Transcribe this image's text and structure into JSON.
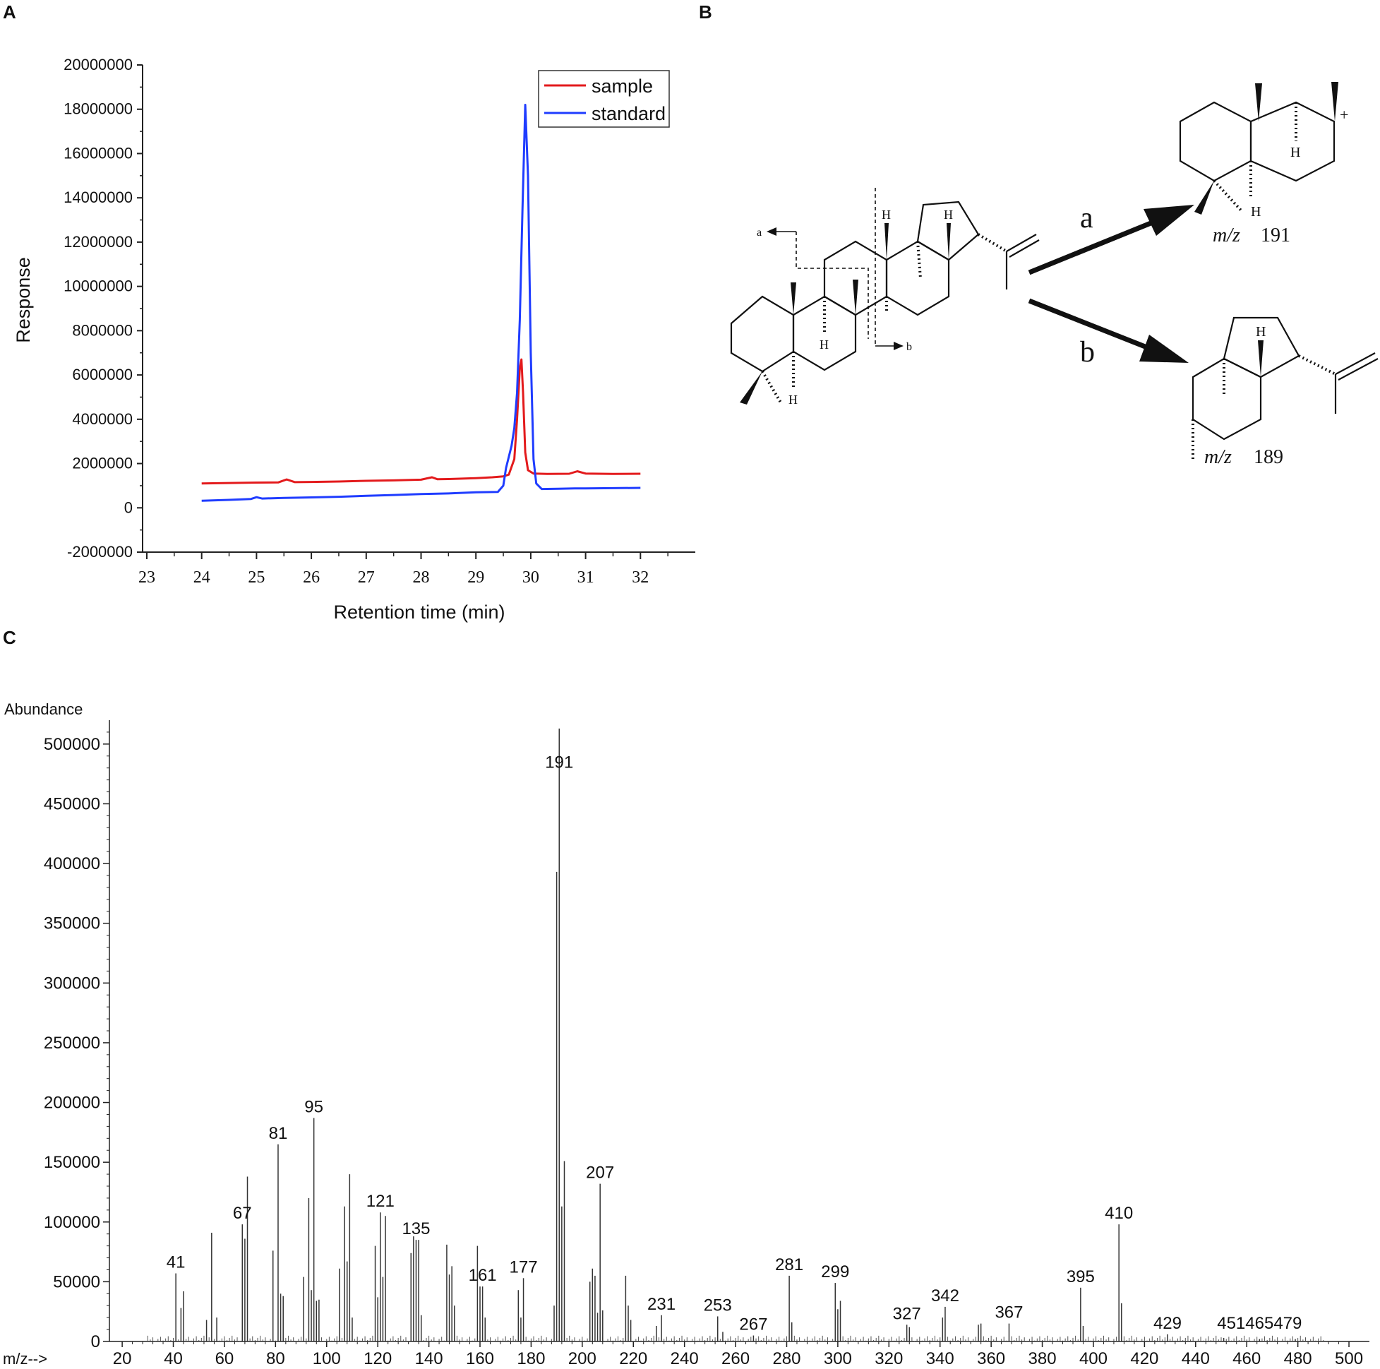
{
  "panels": {
    "a": "A",
    "b": "B",
    "c": "C"
  },
  "chart_data": [
    {
      "type": "line",
      "panel": "A",
      "xlabel": "Retention time (min)",
      "ylabel": "Response",
      "xlim": [
        23,
        33
      ],
      "ylim": [
        -2000000,
        20000000
      ],
      "xticks": [
        "23",
        "24",
        "25",
        "26",
        "27",
        "28",
        "29",
        "30",
        "31",
        "32"
      ],
      "yticks": [
        "-2000000",
        "0",
        "2000000",
        "4000000",
        "6000000",
        "8000000",
        "10000000",
        "12000000",
        "14000000",
        "16000000",
        "18000000",
        "20000000"
      ],
      "legend": "top-right",
      "series": [
        {
          "name": "sample",
          "color": "#e31a1c",
          "x": [
            24,
            24.5,
            25,
            25.4,
            25.55,
            25.7,
            26,
            26.5,
            27,
            27.5,
            28,
            28.2,
            28.3,
            28.5,
            29,
            29.3,
            29.5,
            29.6,
            29.7,
            29.75,
            29.8,
            29.83,
            29.86,
            29.9,
            29.95,
            30.05,
            30.3,
            30.7,
            30.85,
            31,
            31.5,
            32
          ],
          "y": [
            1100000,
            1120000,
            1140000,
            1150000,
            1280000,
            1160000,
            1170000,
            1190000,
            1220000,
            1240000,
            1270000,
            1380000,
            1290000,
            1300000,
            1340000,
            1380000,
            1420000,
            1500000,
            2200000,
            4000000,
            6300000,
            6700000,
            5200000,
            2500000,
            1700000,
            1550000,
            1530000,
            1540000,
            1650000,
            1550000,
            1530000,
            1540000
          ]
        },
        {
          "name": "standard",
          "color": "#1f3cff",
          "x": [
            24,
            24.5,
            24.9,
            25,
            25.1,
            25.5,
            26,
            26.5,
            27,
            27.5,
            28,
            28.5,
            29,
            29.4,
            29.5,
            29.55,
            29.6,
            29.65,
            29.7,
            29.75,
            29.8,
            29.85,
            29.9,
            29.95,
            30,
            30.05,
            30.1,
            30.2,
            30.5,
            30.8,
            31,
            31.5,
            32
          ],
          "y": [
            320000,
            360000,
            400000,
            480000,
            420000,
            450000,
            470000,
            500000,
            540000,
            580000,
            620000,
            650000,
            700000,
            720000,
            1000000,
            1800000,
            2300000,
            2800000,
            3600000,
            5200000,
            8500000,
            13500000,
            18200000,
            15000000,
            7000000,
            2200000,
            1100000,
            850000,
            860000,
            880000,
            880000,
            890000,
            900000
          ]
        }
      ]
    },
    {
      "type": "bar",
      "panel": "C",
      "ylabel": "Abundance",
      "xlabel": "m/z-->",
      "xlim": [
        15,
        508
      ],
      "ylim": [
        0,
        520000
      ],
      "xticks": [
        "20",
        "40",
        "60",
        "80",
        "100",
        "120",
        "140",
        "160",
        "180",
        "200",
        "220",
        "240",
        "260",
        "280",
        "300",
        "320",
        "340",
        "360",
        "380",
        "400",
        "420",
        "440",
        "460",
        "480",
        "500"
      ],
      "yticks": [
        "0",
        "50000",
        "100000",
        "150000",
        "200000",
        "250000",
        "300000",
        "350000",
        "400000",
        "450000",
        "500000"
      ],
      "x": [
        41,
        43,
        44,
        53,
        55,
        57,
        67,
        68,
        69,
        79,
        81,
        82,
        83,
        91,
        93,
        94,
        95,
        96,
        97,
        105,
        107,
        108,
        109,
        110,
        119,
        120,
        121,
        122,
        123,
        133,
        134,
        135,
        136,
        137,
        147,
        148,
        149,
        150,
        159,
        160,
        161,
        162,
        175,
        176,
        177,
        189,
        190,
        191,
        192,
        193,
        203,
        204,
        205,
        206,
        207,
        208,
        217,
        218,
        219,
        229,
        231,
        253,
        255,
        267,
        281,
        282,
        299,
        300,
        301,
        327,
        328,
        341,
        342,
        355,
        356,
        367,
        395,
        396,
        410,
        411,
        429,
        451,
        465,
        479
      ],
      "y": [
        57000,
        28000,
        42000,
        18000,
        91000,
        20000,
        98000,
        86000,
        138000,
        76000,
        165000,
        40000,
        38000,
        54000,
        120000,
        43000,
        187000,
        34000,
        35000,
        61000,
        113000,
        67000,
        140000,
        20000,
        80000,
        37000,
        108000,
        54000,
        105000,
        74000,
        88000,
        85000,
        85000,
        22000,
        81000,
        56000,
        63000,
        30000,
        80000,
        46000,
        46000,
        20000,
        43000,
        20000,
        53000,
        30000,
        393000,
        513000,
        113000,
        151000,
        50000,
        61000,
        55000,
        24000,
        132000,
        26000,
        55000,
        30000,
        18000,
        13000,
        22000,
        21000,
        8000,
        5000,
        55000,
        16000,
        49000,
        27000,
        34000,
        14000,
        12000,
        20000,
        29000,
        14000,
        15000,
        15000,
        45000,
        13000,
        98000,
        32000,
        6000,
        3000,
        2000,
        2000
      ],
      "peak_labels": [
        "41",
        "67",
        "81",
        "95",
        "121",
        "135",
        "161",
        "177",
        "191",
        "207",
        "231",
        "253",
        "267",
        "281",
        "299",
        "327",
        "342",
        "367",
        "395",
        "410",
        "429",
        "451465479"
      ]
    }
  ],
  "structure": {
    "arrow_a": "a",
    "arrow_b": "b",
    "cleave_a": "a",
    "cleave_b": "b",
    "h": "H",
    "plus": "+",
    "mz_prefix": "m/z",
    "frag_a_mz": "191",
    "frag_b_mz": "189"
  }
}
